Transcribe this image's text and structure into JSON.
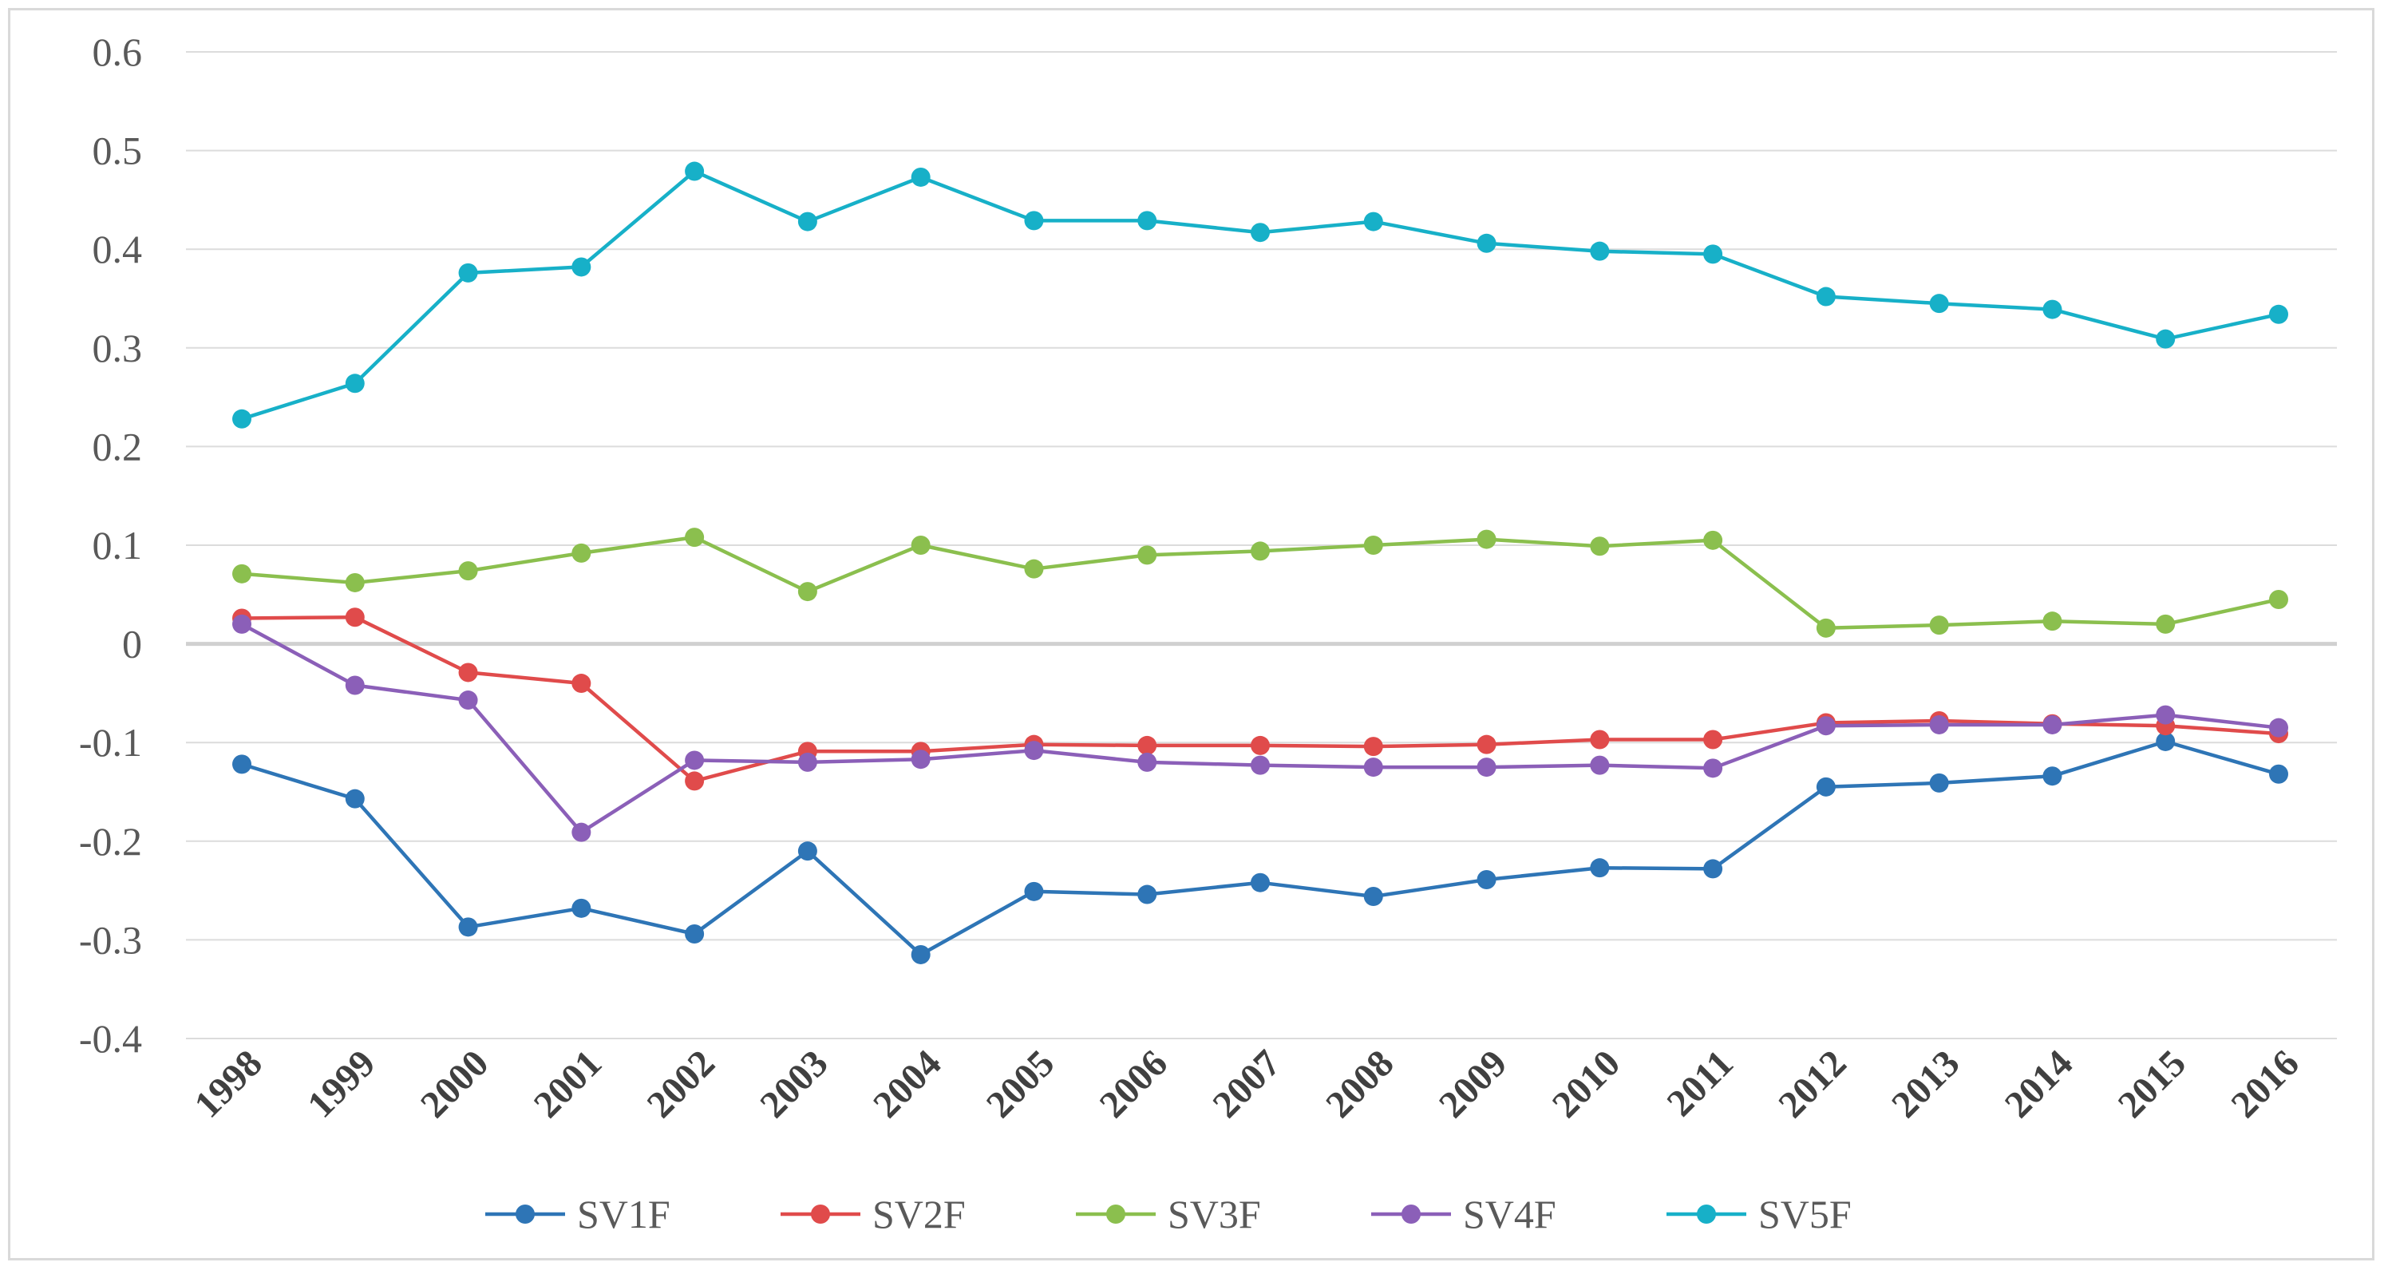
{
  "chart_data": {
    "type": "line",
    "title": "",
    "xlabel": "",
    "ylabel": "",
    "ylim": [
      -0.4,
      0.6
    ],
    "ytick_step": 0.1,
    "yticks": [
      "-0.4",
      "-0.3",
      "-0.2",
      "-0.1",
      "0",
      "0.1",
      "0.2",
      "0.3",
      "0.4",
      "0.5",
      "0.6"
    ],
    "grid": true,
    "legend_position": "bottom",
    "categories": [
      "1998",
      "1999",
      "2000",
      "2001",
      "2002",
      "2003",
      "2004",
      "2005",
      "2006",
      "2007",
      "2008",
      "2009",
      "2010",
      "2011",
      "2012",
      "2013",
      "2014",
      "2015",
      "2016"
    ],
    "series": [
      {
        "name": "SV1F",
        "color": "#2e75b6",
        "values": [
          -0.122,
          -0.157,
          -0.287,
          -0.268,
          -0.294,
          -0.21,
          -0.315,
          -0.251,
          -0.254,
          -0.242,
          -0.256,
          -0.239,
          -0.227,
          -0.228,
          -0.145,
          -0.141,
          -0.134,
          -0.099,
          -0.132
        ]
      },
      {
        "name": "SV2F",
        "color": "#e04b4b",
        "values": [
          0.026,
          0.027,
          -0.029,
          -0.04,
          -0.139,
          -0.109,
          -0.109,
          -0.102,
          -0.103,
          -0.103,
          -0.104,
          -0.102,
          -0.097,
          -0.097,
          -0.08,
          -0.078,
          -0.081,
          -0.083,
          -0.091
        ]
      },
      {
        "name": "SV3F",
        "color": "#8bbf4e",
        "values": [
          0.071,
          0.062,
          0.074,
          0.092,
          0.108,
          0.053,
          0.1,
          0.076,
          0.09,
          0.094,
          0.1,
          0.106,
          0.099,
          0.105,
          0.016,
          0.019,
          0.023,
          0.02,
          0.045
        ]
      },
      {
        "name": "SV4F",
        "color": "#8b5fb8",
        "values": [
          0.02,
          -0.042,
          -0.057,
          -0.191,
          -0.118,
          -0.12,
          -0.117,
          -0.108,
          -0.12,
          -0.123,
          -0.125,
          -0.125,
          -0.123,
          -0.126,
          -0.083,
          -0.082,
          -0.082,
          -0.072,
          -0.085
        ]
      },
      {
        "name": "SV5F",
        "color": "#17b0c8",
        "values": [
          0.228,
          0.264,
          0.376,
          0.382,
          0.479,
          0.428,
          0.473,
          0.429,
          0.429,
          0.417,
          0.428,
          0.406,
          0.398,
          0.395,
          0.352,
          0.345,
          0.339,
          0.309,
          0.334
        ]
      }
    ]
  }
}
